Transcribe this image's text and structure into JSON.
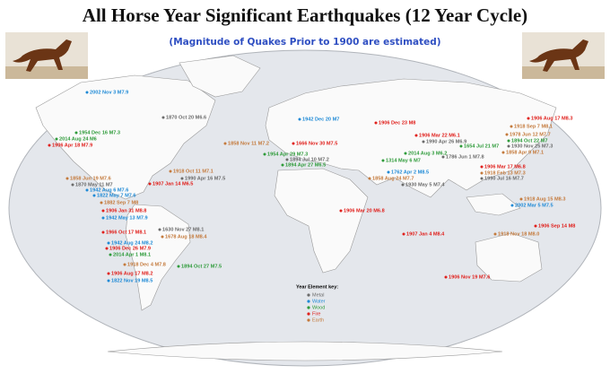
{
  "header": {
    "title": "All Horse Year Significant Earthquakes (12 Year Cycle)",
    "subtitle": "(Magnitude of Quakes Prior to 1900 are estimated)"
  },
  "legend": {
    "title": "Year Element key:",
    "items": [
      {
        "label": "Metal",
        "color": "#6b6b6b"
      },
      {
        "label": "Water",
        "color": "#1f8ad6"
      },
      {
        "label": "Wood",
        "color": "#2e9b3a"
      },
      {
        "label": "Fire",
        "color": "#e0201c"
      },
      {
        "label": "Earth",
        "color": "#c47a3c"
      }
    ]
  },
  "quakes": [
    {
      "label": "2002 Nov 3 M7.9",
      "element": 1
    },
    {
      "label": "1954 Dec 16 M7.3",
      "element": 2
    },
    {
      "label": "2014 Aug 24 M6",
      "element": 2
    },
    {
      "label": "1906 Apr 18 M7.9",
      "element": 3
    },
    {
      "label": "1870 Oct 20 M6.6",
      "element": 0
    },
    {
      "label": "1858 Jun 19 M7.6",
      "element": 4
    },
    {
      "label": "1870 May 11 M7",
      "element": 0
    },
    {
      "label": "1942 Aug 6 M7.6",
      "element": 1
    },
    {
      "label": "1822 May 7 M7.6",
      "element": 1
    },
    {
      "label": "1882 Sep 7 M8",
      "element": 4
    },
    {
      "label": "1918 Oct 11 M7.1",
      "element": 4
    },
    {
      "label": "1990 Apr 16 M7.5",
      "element": 0
    },
    {
      "label": "1907 Jan 14 M6.5",
      "element": 3
    },
    {
      "label": "1906 Jan 31 M8.8",
      "element": 3
    },
    {
      "label": "1942 May 13 M7.9",
      "element": 1
    },
    {
      "label": "1630 Nov 27 M8.1",
      "element": 0
    },
    {
      "label": "1966 Oct 17 M8.1",
      "element": 3
    },
    {
      "label": "1678 Aug 18 M8.4",
      "element": 4
    },
    {
      "label": "1942 Aug 24 M8.2",
      "element": 1
    },
    {
      "label": "1906 Dec 26 M7.9",
      "element": 3
    },
    {
      "label": "2014 Apr 1 M8.1",
      "element": 2
    },
    {
      "label": "1918 Dec 4 M7.8",
      "element": 4
    },
    {
      "label": "1894 Oct 27 M7.5",
      "element": 2
    },
    {
      "label": "1906 Aug 17 M8.2",
      "element": 3
    },
    {
      "label": "1822 Nov 19 M8.5",
      "element": 1
    },
    {
      "label": "1858 Nov 11 M7.2",
      "element": 4
    },
    {
      "label": "1942 Dec 20 M7",
      "element": 1
    },
    {
      "label": "1906 Dec 23 M8",
      "element": 3
    },
    {
      "label": "1666 Nov 30 M7.5",
      "element": 3
    },
    {
      "label": "1954 Apr 29 M7.3",
      "element": 2
    },
    {
      "label": "1894 Jul 10 M7.2",
      "element": 0
    },
    {
      "label": "1894 Apr 27 M6.5",
      "element": 2
    },
    {
      "label": "1906 Mar 22 M6.1",
      "element": 3
    },
    {
      "label": "1990 Apr 26 M6.9",
      "element": 0
    },
    {
      "label": "1654 Jul 21 M7",
      "element": 2
    },
    {
      "label": "1978 Jun 12 M7.7",
      "element": 4
    },
    {
      "label": "1894 Oct 22 M7",
      "element": 2
    },
    {
      "label": "1930 Nov 25 M7.3",
      "element": 0
    },
    {
      "label": "1858 Apr 9 M7.1",
      "element": 4
    },
    {
      "label": "1918 Sep 7 M8.1",
      "element": 4
    },
    {
      "label": "1906 Aug 17 M8.3",
      "element": 3
    },
    {
      "label": "1906 Mar 17 M6.8",
      "element": 3
    },
    {
      "label": "1918 Feb 13 M7.3",
      "element": 4
    },
    {
      "label": "1786 Jun 1 M7.8",
      "element": 0
    },
    {
      "label": "2014 Aug 3 M6.2",
      "element": 2
    },
    {
      "label": "1314 May 6 M7",
      "element": 2
    },
    {
      "label": "1762 Apr 2 M8.5",
      "element": 1
    },
    {
      "label": "1858 Aug 24 M7.7",
      "element": 4
    },
    {
      "label": "1930 May 5 M7.4",
      "element": 0
    },
    {
      "label": "1990 Jul 16 M7.7",
      "element": 0
    },
    {
      "label": "1918 Aug 15 M8.3",
      "element": 4
    },
    {
      "label": "2002 Mar 5 M7.5",
      "element": 1
    },
    {
      "label": "1906 Sep 14 M8",
      "element": 3
    },
    {
      "label": "1918 Nov 18 M8.0",
      "element": 4
    },
    {
      "label": "1906 Mar 20 M6.8",
      "element": 3
    },
    {
      "label": "1907 Jan 4 M8.4",
      "element": 3
    },
    {
      "label": "1906 Nov 19 M7.6",
      "element": 3
    }
  ]
}
